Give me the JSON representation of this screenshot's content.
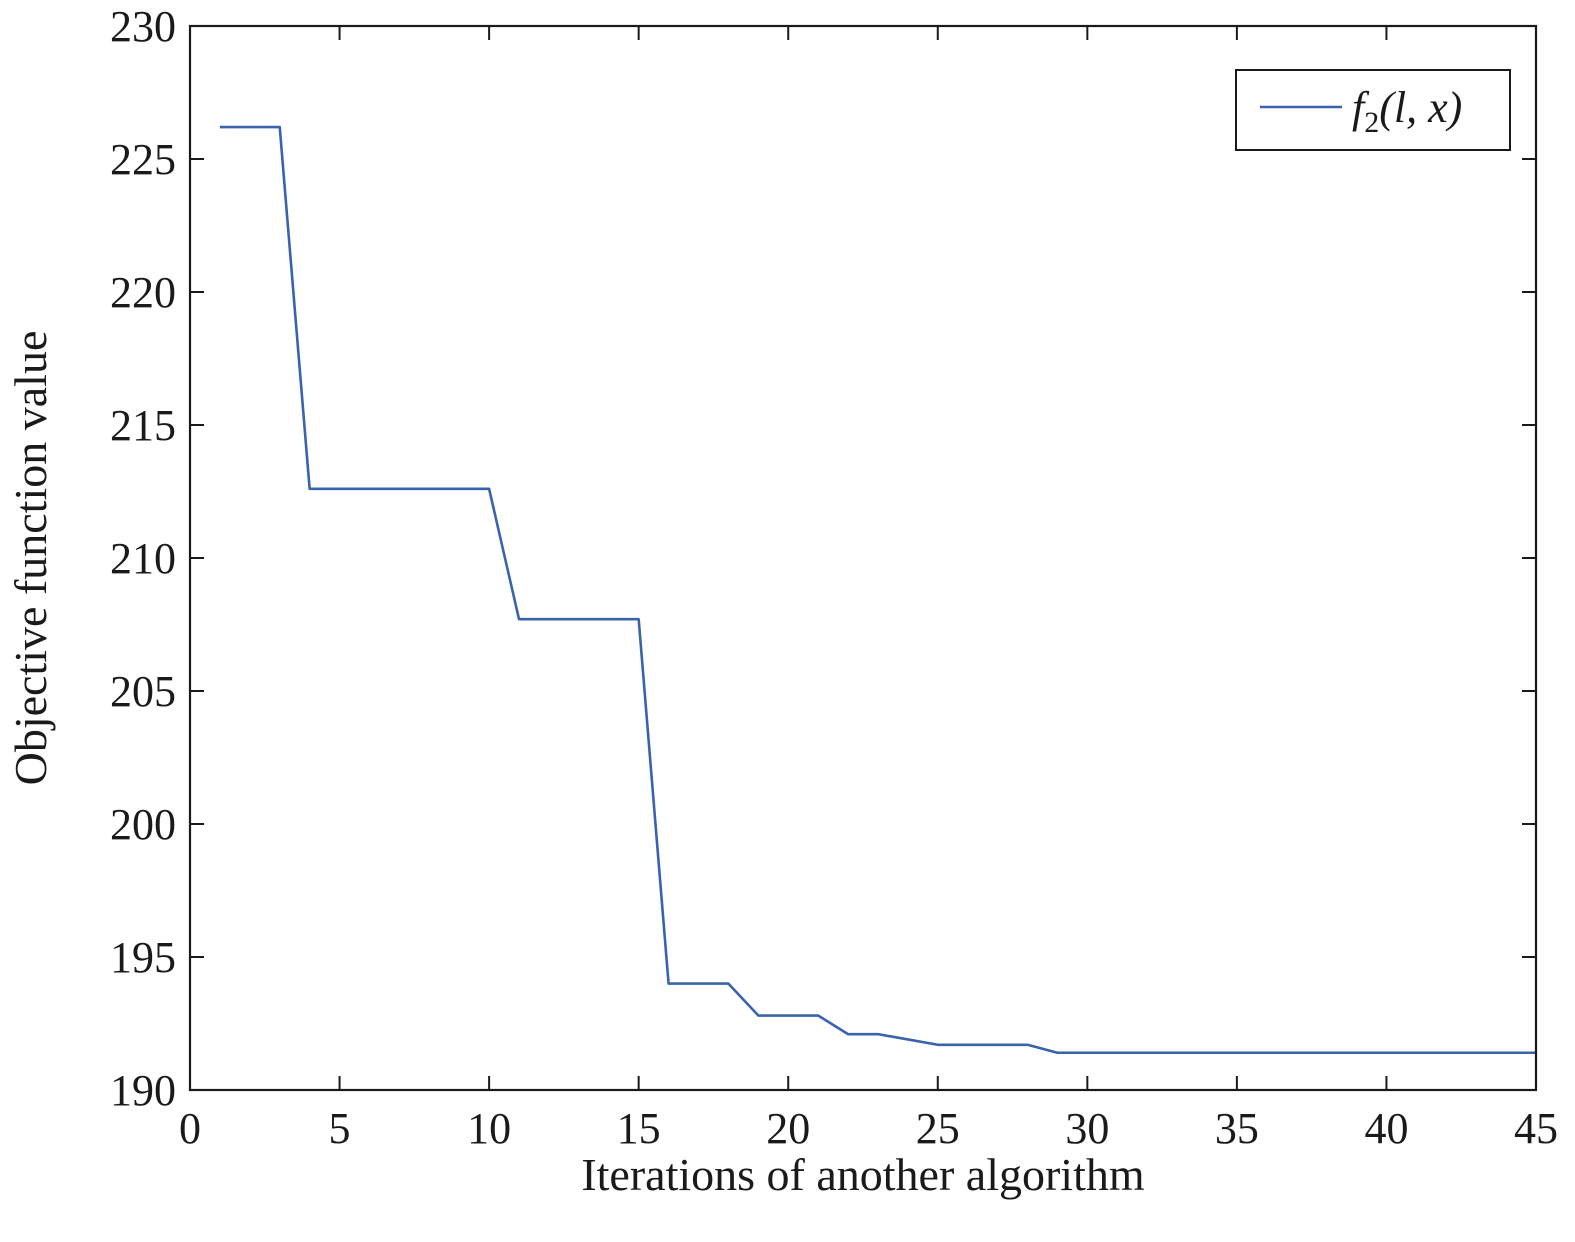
{
  "chart_data": {
    "type": "line",
    "xlabel": "Iterations of another algorithm",
    "ylabel": "Objective function value",
    "xlim": [
      0,
      45
    ],
    "ylim": [
      190,
      230
    ],
    "xticks": [
      0,
      5,
      10,
      15,
      20,
      25,
      30,
      35,
      40,
      45
    ],
    "yticks": [
      190,
      195,
      200,
      205,
      210,
      215,
      220,
      225,
      230
    ],
    "grid": false,
    "legend_position": "top-right",
    "legend": {
      "base": "f",
      "subscript": "2",
      "args": "(l, x)"
    },
    "series": [
      {
        "name": "f2(l, x)",
        "color": "#3a63ad",
        "x": [
          1,
          2,
          3,
          4,
          5,
          6,
          7,
          8,
          9,
          10,
          11,
          12,
          13,
          14,
          15,
          16,
          17,
          18,
          19,
          20,
          21,
          22,
          23,
          24,
          25,
          26,
          27,
          28,
          29,
          30,
          31,
          32,
          33,
          34,
          35,
          36,
          37,
          38,
          39,
          40,
          41,
          42,
          43,
          44,
          45
        ],
        "values": [
          226.2,
          226.2,
          226.2,
          212.6,
          212.6,
          212.6,
          212.6,
          212.6,
          212.6,
          212.6,
          207.7,
          207.7,
          207.7,
          207.7,
          207.7,
          194.0,
          194.0,
          194.0,
          192.8,
          192.8,
          192.8,
          192.1,
          192.1,
          191.9,
          191.7,
          191.7,
          191.7,
          191.7,
          191.4,
          191.4,
          191.4,
          191.4,
          191.4,
          191.4,
          191.4,
          191.4,
          191.4,
          191.4,
          191.4,
          191.4,
          191.4,
          191.4,
          191.4,
          191.4,
          191.4
        ]
      }
    ]
  }
}
